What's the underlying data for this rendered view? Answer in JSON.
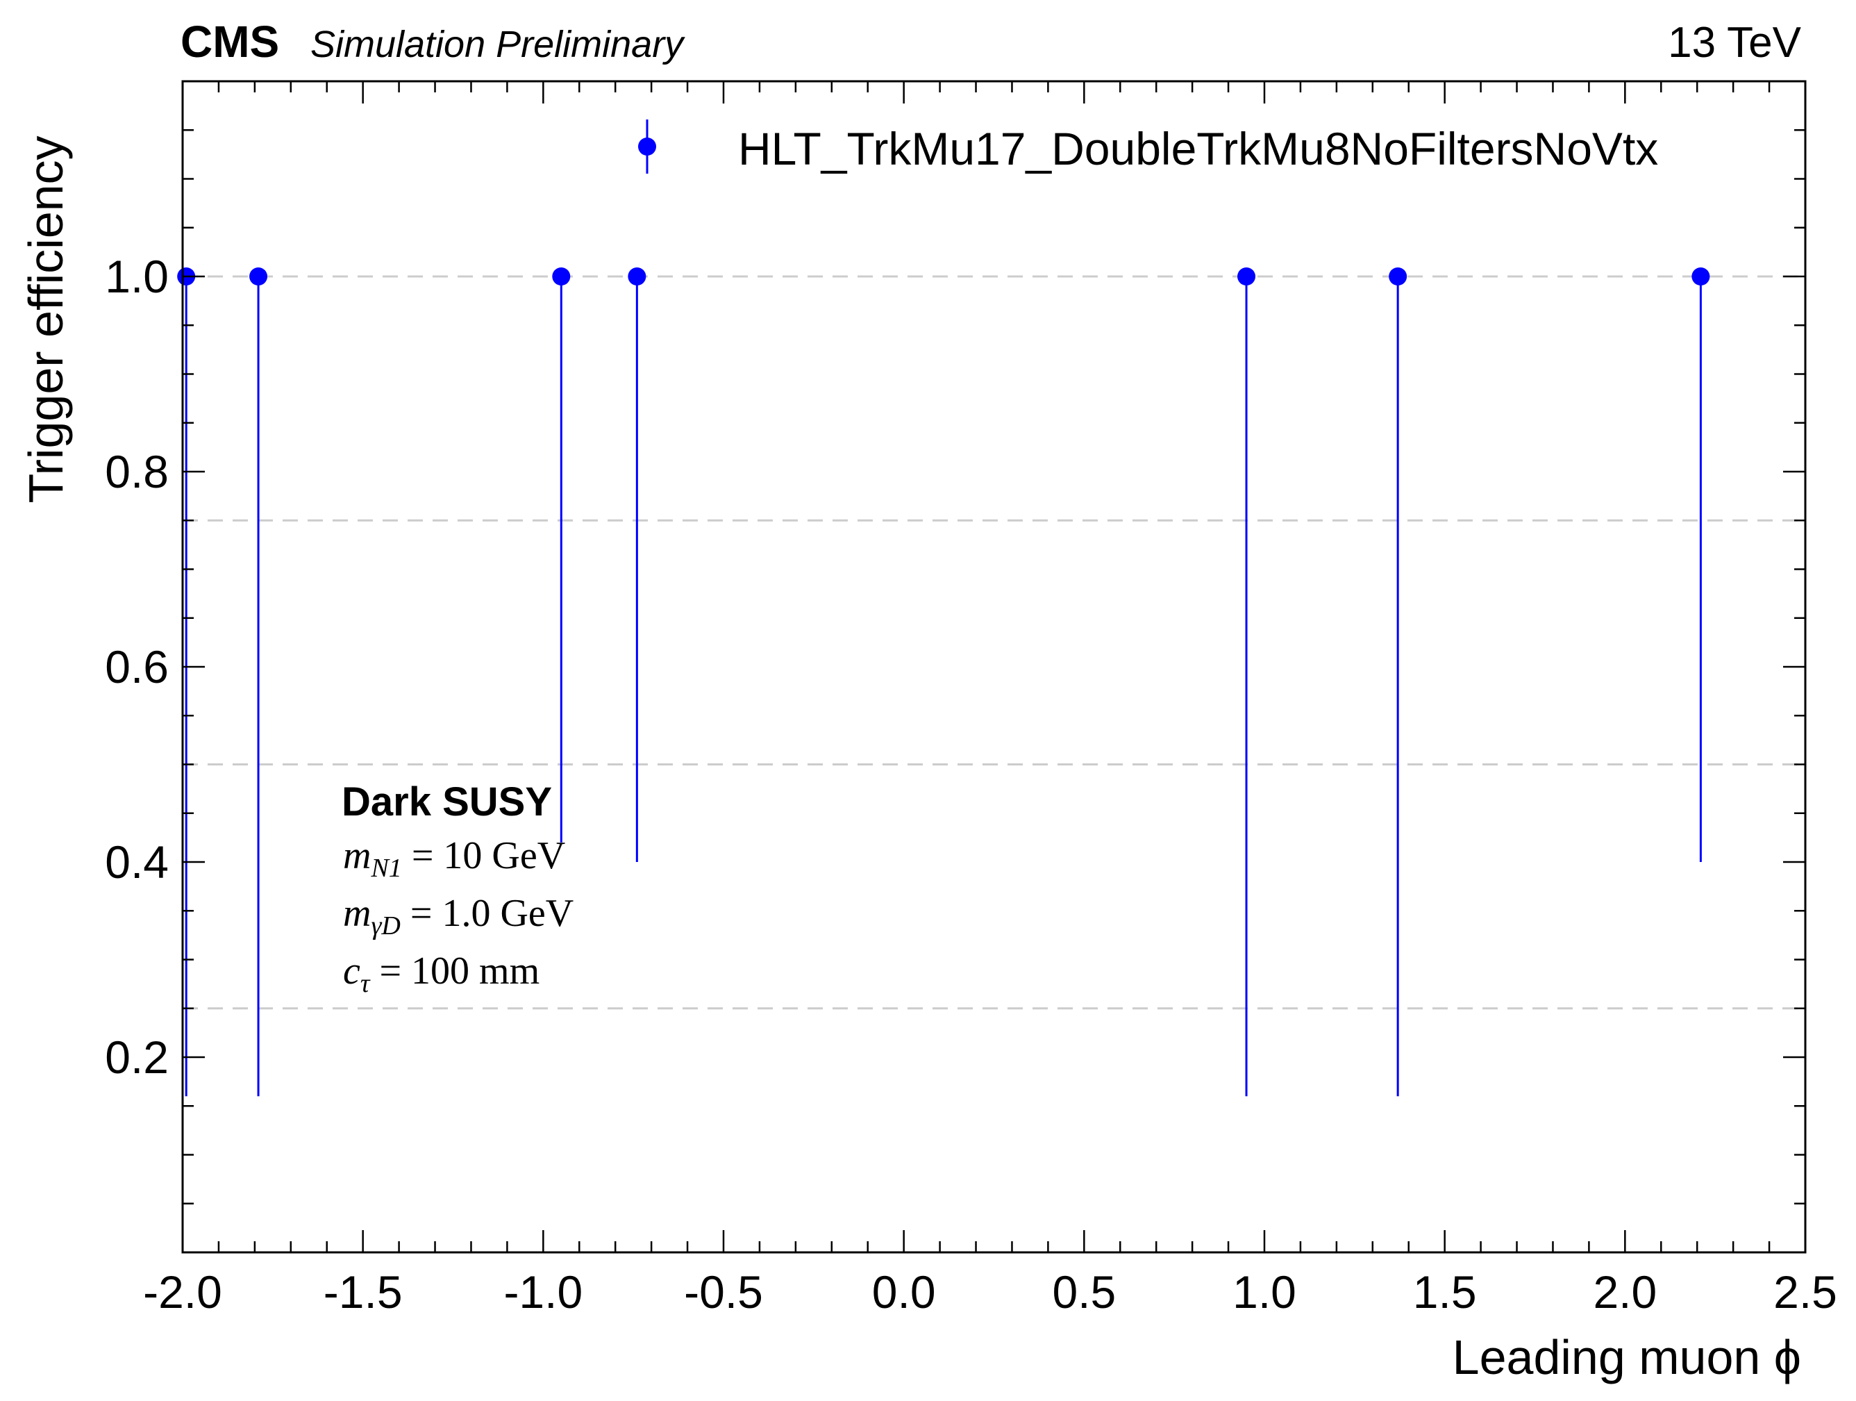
{
  "header": {
    "experiment": "CMS",
    "status": "Simulation Preliminary",
    "energy": "13 TeV"
  },
  "annotation": {
    "title": "Dark SUSY",
    "line1": {
      "sym": "m",
      "sub": "N1",
      "rest": " = 10 GeV"
    },
    "line2": {
      "sym": "m",
      "sub": "γD",
      "rest": " = 1.0 GeV"
    },
    "line3": {
      "sym": "c",
      "sub": "τ",
      "rest": " = 100 mm"
    }
  },
  "colors": {
    "series": "#0000ff",
    "grid": "#cccccc",
    "axis": "#000000"
  },
  "chart_data": {
    "type": "scatter",
    "title": "",
    "xlabel": "Leading muon ϕ",
    "ylabel": "Trigger efficiency",
    "xlim": [
      -2.0,
      2.5
    ],
    "ylim": [
      0.0,
      1.2
    ],
    "xticks": [
      -2.0,
      -1.5,
      -1.0,
      -0.5,
      0.0,
      0.5,
      1.0,
      1.5,
      2.0,
      2.5
    ],
    "xtick_labels": [
      "-2.0",
      "-1.5",
      "-1.0",
      "-0.5",
      "0.0",
      "0.5",
      "1.0",
      "1.5",
      "2.0",
      "2.5"
    ],
    "yticks": [
      0.2,
      0.4,
      0.6,
      0.8,
      1.0
    ],
    "ytick_labels": [
      "0.2",
      "0.4",
      "0.6",
      "0.8",
      "1.0"
    ],
    "grid": {
      "y": [
        0.25,
        0.5,
        0.75,
        1.0
      ],
      "style": "dashed"
    },
    "legend": {
      "position": "top-right"
    },
    "series": [
      {
        "name": "HLT_TrkMu17_DoubleTrkMu8NoFiltersNoVtx",
        "points": [
          {
            "x": -1.99,
            "y": 1.0,
            "ylow": 0.16
          },
          {
            "x": -1.79,
            "y": 1.0,
            "ylow": 0.16
          },
          {
            "x": -0.95,
            "y": 1.0,
            "ylow": 0.42
          },
          {
            "x": -0.74,
            "y": 1.0,
            "ylow": 0.4
          },
          {
            "x": 0.95,
            "y": 1.0,
            "ylow": 0.16
          },
          {
            "x": 1.37,
            "y": 1.0,
            "ylow": 0.16
          },
          {
            "x": 2.21,
            "y": 1.0,
            "ylow": 0.4
          }
        ]
      }
    ]
  }
}
